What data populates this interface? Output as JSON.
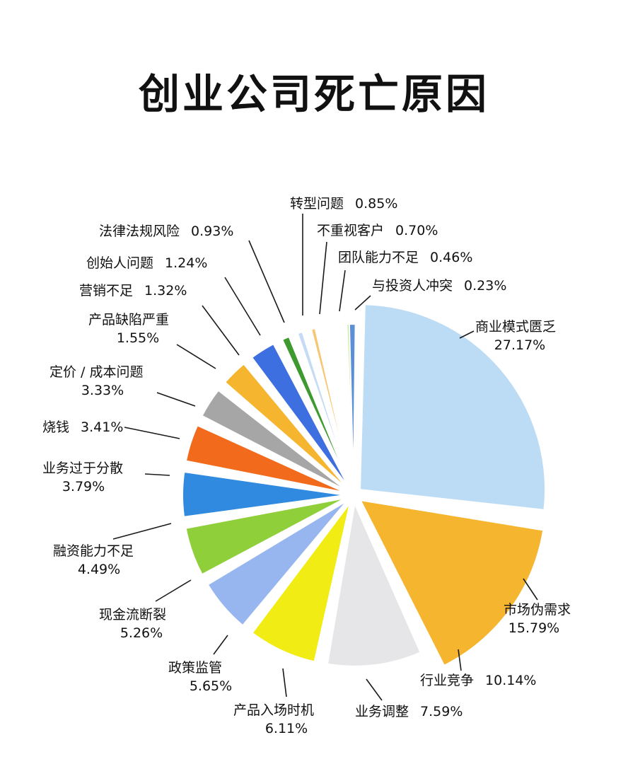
{
  "chart_data": {
    "type": "pie",
    "title": "创业公司死亡原因",
    "slices": [
      {
        "name": "商业模式匮乏",
        "value": 27.17,
        "value_label": "27.17%",
        "color": "#bcdcf6"
      },
      {
        "name": "市场伪需求",
        "value": 15.79,
        "value_label": "15.79%",
        "color": "#f5b52e"
      },
      {
        "name": "行业竞争",
        "value": 10.14,
        "value_label": "10.14%",
        "color": "#e6e6e8"
      },
      {
        "name": "业务调整",
        "value": 7.59,
        "value_label": "7.59%",
        "color": "#f0ec14"
      },
      {
        "name": "产品入场时机",
        "value": 6.11,
        "value_label": "6.11%",
        "color": "#97b6ef"
      },
      {
        "name": "政策监管",
        "value": 5.65,
        "value_label": "5.65%",
        "color": "#8fcf3a"
      },
      {
        "name": "现金流断裂",
        "value": 5.26,
        "value_label": "5.26%",
        "color": "#2f8ae0"
      },
      {
        "name": "融资能力不足",
        "value": 4.49,
        "value_label": "4.49%",
        "color": "#f26a1b"
      },
      {
        "name": "业务过于分散",
        "value": 3.79,
        "value_label": "3.79%",
        "color": "#a6a6a6"
      },
      {
        "name": "烧钱",
        "value": 3.41,
        "value_label": "3.41%",
        "color": "#f5b52e"
      },
      {
        "name": "定价 / 成本问题",
        "value": 3.33,
        "value_label": "3.33%",
        "color": "#3e6fe0"
      },
      {
        "name": "产品缺陷严重",
        "value": 1.55,
        "value_label": "1.55%",
        "color": "#3e9a2e"
      },
      {
        "name": "营销不足",
        "value": 1.32,
        "value_label": "1.32%",
        "color": "#c5daf5"
      },
      {
        "name": "创始人问题",
        "value": 1.24,
        "value_label": "1.24%",
        "color": "#f6c673"
      },
      {
        "name": "法律法规风险",
        "value": 0.93,
        "value_label": "0.93%",
        "color": "#eeeeee"
      },
      {
        "name": "转型问题",
        "value": 0.85,
        "value_label": "0.85%",
        "color": "#f2ee3a"
      },
      {
        "name": "不重视客户",
        "value": 0.7,
        "value_label": "0.70%",
        "color": "#c3d6f3"
      },
      {
        "name": "团队能力不足",
        "value": 0.46,
        "value_label": "0.46%",
        "color": "#cfe9a4"
      },
      {
        "name": "与投资人冲突",
        "value": 0.23,
        "value_label": "0.23%",
        "color": "#5b8fd6"
      }
    ]
  }
}
